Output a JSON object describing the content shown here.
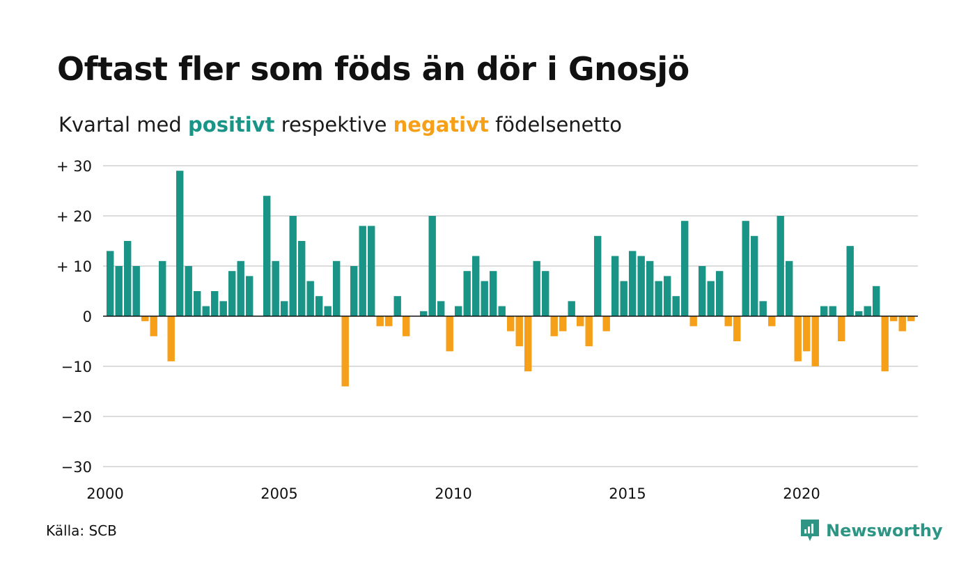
{
  "title": "Oftast fler som föds än dör i Gnosjö",
  "subtitle": {
    "prefix": "Kvartal med ",
    "positive_word": "positivt",
    "middle": " respektive ",
    "negative_word": "negativt",
    "suffix": " födelsenetto"
  },
  "colors": {
    "positive": "#1a9486",
    "negative": "#f6a01a",
    "grid": "#dcdcdc",
    "zero_line": "#111111"
  },
  "source": "Källa: SCB",
  "brand": {
    "name": "Newsworthy",
    "icon": "newsworthy-chart-icon"
  },
  "chart_data": {
    "type": "bar",
    "x_start": "2000 Q1",
    "x_ticks": [
      "2000",
      "2005",
      "2010",
      "2015",
      "2020"
    ],
    "x_tick_years": [
      2000,
      2005,
      2010,
      2015,
      2020
    ],
    "y_ticks": [
      30,
      20,
      10,
      0,
      -10,
      -20,
      -30
    ],
    "y_tick_labels": [
      "+ 30",
      "+ 20",
      "+ 10",
      "0",
      "−10",
      "−20",
      "−30"
    ],
    "ylim": [
      -30,
      30
    ],
    "grid": true,
    "values": [
      13,
      10,
      15,
      10,
      -1,
      -4,
      11,
      -9,
      29,
      10,
      5,
      2,
      5,
      3,
      9,
      11,
      8,
      0,
      24,
      11,
      3,
      20,
      15,
      7,
      4,
      2,
      11,
      -14,
      10,
      18,
      18,
      -2,
      -2,
      4,
      -4,
      0,
      1,
      20,
      3,
      -7,
      2,
      9,
      12,
      7,
      9,
      2,
      -3,
      -6,
      -11,
      11,
      9,
      -4,
      -3,
      3,
      -2,
      -6,
      16,
      -3,
      12,
      7,
      13,
      12,
      11,
      7,
      8,
      4,
      19,
      -2,
      10,
      7,
      9,
      -2,
      -5,
      19,
      16,
      3,
      -2,
      20,
      11,
      -9,
      -7,
      -10,
      2,
      2,
      -5,
      14,
      1,
      2,
      6,
      -11,
      -1,
      -3,
      -1
    ]
  }
}
